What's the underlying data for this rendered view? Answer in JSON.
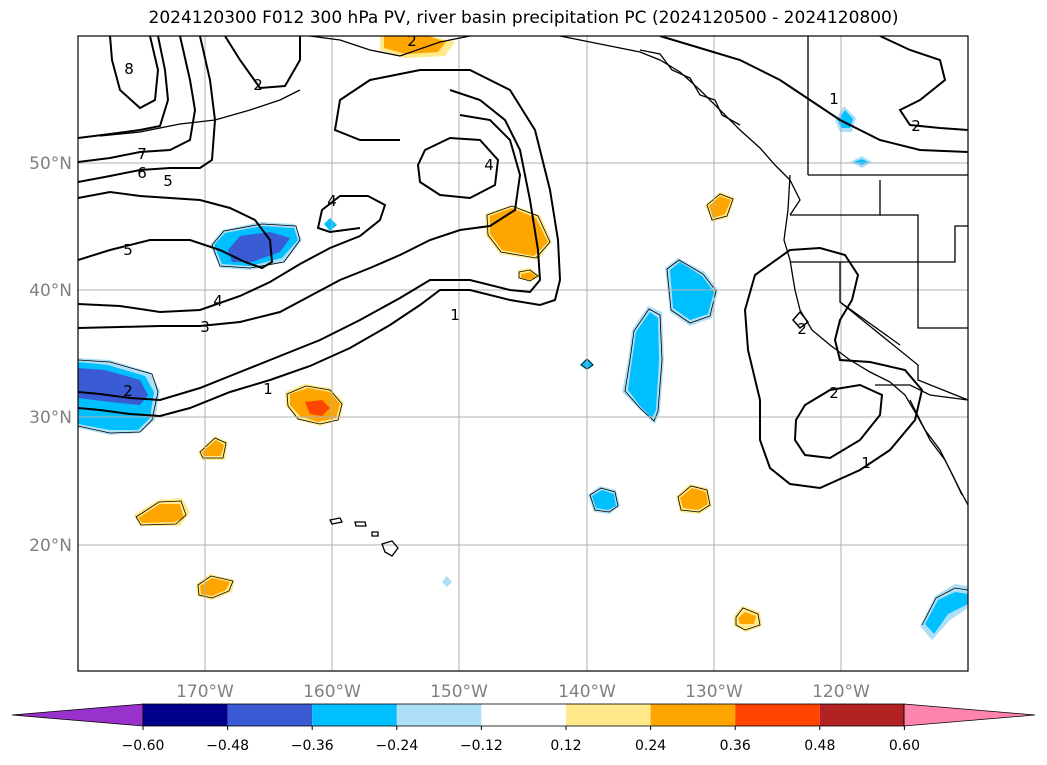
{
  "title": "2024120300 F012 300 hPa PV, river basin precipitation PC (2024120500 - 2024120800)",
  "map": {
    "lon_ticks": [
      "170°W",
      "160°W",
      "150°W",
      "140°W",
      "130°W",
      "120°W"
    ],
    "lat_ticks": [
      "50°N",
      "40°N",
      "30°N",
      "20°N"
    ],
    "contour_labels": [
      "8",
      "7",
      "6",
      "5",
      "5",
      "4",
      "4",
      "4",
      "3",
      "2",
      "2",
      "1",
      "1",
      "2",
      "1",
      "2",
      "2",
      "2",
      "1"
    ]
  },
  "colorbar": {
    "levels": [
      "−0.60",
      "−0.48",
      "−0.36",
      "−0.24",
      "−0.12",
      "0.12",
      "0.24",
      "0.36",
      "0.48",
      "0.60"
    ],
    "colors": [
      "#9932cc",
      "#00008b",
      "#3b5bd5",
      "#00bfff",
      "#ade0f8",
      "#ffffff",
      "#ffe98a",
      "#ffa500",
      "#ff4500",
      "#b22222",
      "#ff85ae"
    ],
    "under_color": "#9932cc",
    "over_color": "#ff85ae"
  }
}
